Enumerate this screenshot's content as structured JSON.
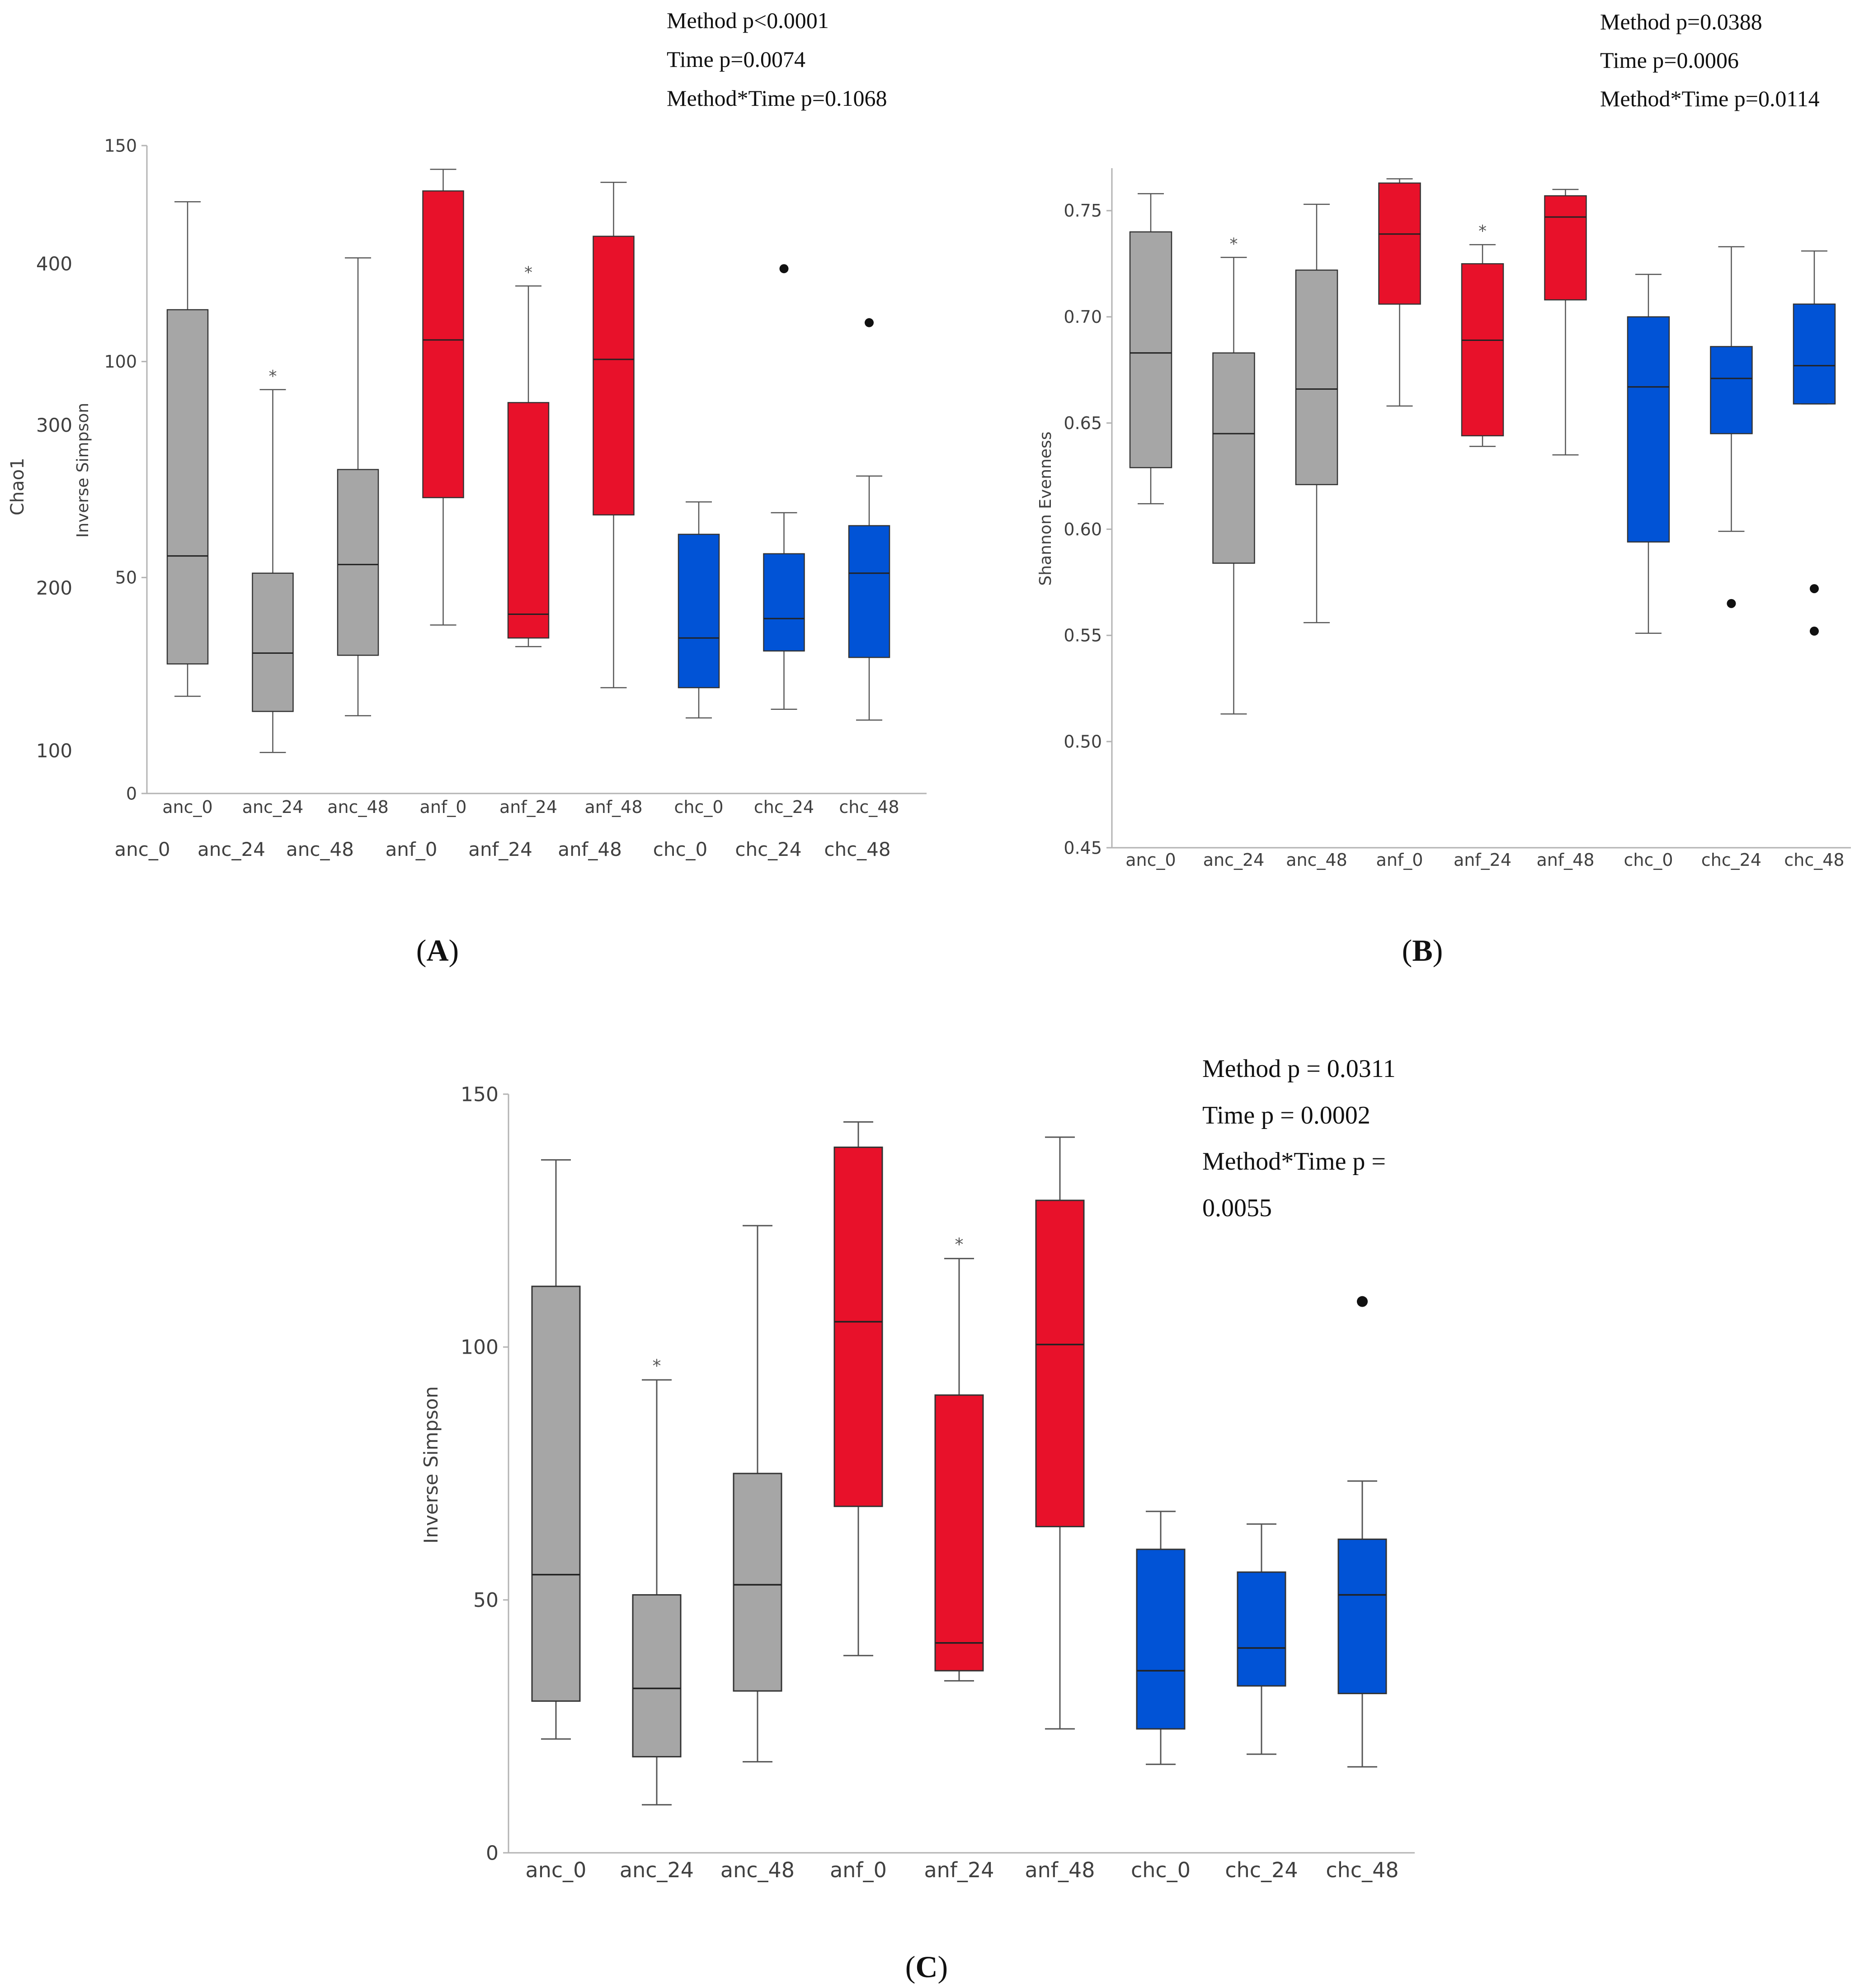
{
  "colors": {
    "grey": "#a6a6a6",
    "red": "#e8112a",
    "blue": "#0153d6",
    "axis": "#b3b3b3",
    "text": "#404040"
  },
  "panels": {
    "A": {
      "label": "(A)",
      "stats": [
        "Method p<0.0001",
        "Time p=0.0074",
        "Method*Time p=0.1068"
      ],
      "chao_label": "Chao1",
      "chao_ticks": [
        "400",
        "300",
        "200",
        "100"
      ],
      "chao_categories": [
        "anc_0",
        "anc_24",
        "anc_48",
        "anf_0",
        "anf_24",
        "anf_48",
        "chc_0",
        "chc_24",
        "chc_48"
      ]
    },
    "B": {
      "label": "(B)",
      "stats": [
        "Method p=0.0388",
        "Time p=0.0006",
        "Method*Time p=0.0114"
      ]
    },
    "C": {
      "label": "(C)",
      "stats": [
        "Method p = 0.0311",
        "Time p = 0.0002",
        "Method*Time p =",
        "0.0055"
      ]
    }
  },
  "chart_data": [
    {
      "type": "box",
      "id": "A",
      "title": "",
      "xlabel": "",
      "ylabel": "Inverse Simpson",
      "ylim": [
        0,
        150
      ],
      "yticks": [
        0,
        50,
        100,
        150
      ],
      "categories": [
        "anc_0",
        "anc_24",
        "anc_48",
        "anf_0",
        "anf_24",
        "anf_48",
        "chc_0",
        "chc_24",
        "chc_48"
      ],
      "groups": [
        "grey",
        "grey",
        "grey",
        "red",
        "red",
        "red",
        "blue",
        "blue",
        "blue"
      ],
      "boxes": [
        {
          "min": 22.5,
          "q1": 30,
          "median": 55,
          "q3": 112,
          "max": 137
        },
        {
          "min": 9.5,
          "q1": 19,
          "median": 32.5,
          "q3": 51,
          "max": 93.5,
          "marker": "*"
        },
        {
          "min": 18,
          "q1": 32,
          "median": 53,
          "q3": 75,
          "max": 124
        },
        {
          "min": 39,
          "q1": 68.5,
          "median": 105,
          "q3": 139.5,
          "max": 144.5
        },
        {
          "min": 34,
          "q1": 36,
          "median": 41.5,
          "q3": 90.5,
          "max": 117.5,
          "marker": "*"
        },
        {
          "min": 24.5,
          "q1": 64.5,
          "median": 100.5,
          "q3": 129,
          "max": 141.5
        },
        {
          "min": 17.5,
          "q1": 24.5,
          "median": 36,
          "q3": 60,
          "max": 67.5
        },
        {
          "min": 19.5,
          "q1": 33,
          "median": 40.5,
          "q3": 55.5,
          "max": 65,
          "outliers": [
            121.5
          ]
        },
        {
          "min": 17,
          "q1": 31.5,
          "median": 51,
          "q3": 62,
          "max": 73.5,
          "outliers": [
            109
          ]
        }
      ]
    },
    {
      "type": "box",
      "id": "B",
      "title": "",
      "xlabel": "",
      "ylabel": "Shannon Evenness",
      "ylim": [
        0.45,
        0.77
      ],
      "yticks": [
        0.45,
        0.5,
        0.55,
        0.6,
        0.65,
        0.7,
        0.75
      ],
      "ytick_labels": [
        "0.45",
        "0.50",
        "0.55",
        "0.60",
        "0.65",
        "0.70",
        "0.75"
      ],
      "categories": [
        "anc_0",
        "anc_24",
        "anc_48",
        "anf_0",
        "anf_24",
        "anf_48",
        "chc_0",
        "chc_24",
        "chc_48"
      ],
      "groups": [
        "grey",
        "grey",
        "grey",
        "red",
        "red",
        "red",
        "blue",
        "blue",
        "blue"
      ],
      "boxes": [
        {
          "min": 0.612,
          "q1": 0.629,
          "median": 0.683,
          "q3": 0.74,
          "max": 0.758
        },
        {
          "min": 0.513,
          "q1": 0.584,
          "median": 0.645,
          "q3": 0.683,
          "max": 0.728,
          "marker": "*"
        },
        {
          "min": 0.556,
          "q1": 0.621,
          "median": 0.666,
          "q3": 0.722,
          "max": 0.753
        },
        {
          "min": 0.658,
          "q1": 0.706,
          "median": 0.739,
          "q3": 0.763,
          "max": 0.765
        },
        {
          "min": 0.639,
          "q1": 0.644,
          "median": 0.689,
          "q3": 0.725,
          "max": 0.734,
          "marker": "*"
        },
        {
          "min": 0.635,
          "q1": 0.708,
          "median": 0.747,
          "q3": 0.757,
          "max": 0.76
        },
        {
          "min": 0.551,
          "q1": 0.594,
          "median": 0.667,
          "q3": 0.7,
          "max": 0.72
        },
        {
          "min": 0.599,
          "q1": 0.645,
          "median": 0.671,
          "q3": 0.686,
          "max": 0.733,
          "outliers": [
            0.565
          ]
        },
        {
          "min": 0.659,
          "q1": 0.659,
          "median": 0.677,
          "q3": 0.706,
          "max": 0.731,
          "outliers": [
            0.572,
            0.552
          ]
        }
      ]
    },
    {
      "type": "box",
      "id": "C",
      "title": "",
      "xlabel": "",
      "ylabel": "Inverse Simpson",
      "ylim": [
        0,
        150
      ],
      "yticks": [
        0,
        50,
        100,
        150
      ],
      "categories": [
        "anc_0",
        "anc_24",
        "anc_48",
        "anf_0",
        "anf_24",
        "anf_48",
        "chc_0",
        "chc_24",
        "chc_48"
      ],
      "groups": [
        "grey",
        "grey",
        "grey",
        "red",
        "red",
        "red",
        "blue",
        "blue",
        "blue"
      ],
      "boxes": [
        {
          "min": 22.5,
          "q1": 30,
          "median": 55,
          "q3": 112,
          "max": 137
        },
        {
          "min": 9.5,
          "q1": 19,
          "median": 32.5,
          "q3": 51,
          "max": 93.5,
          "marker": "*"
        },
        {
          "min": 18,
          "q1": 32,
          "median": 53,
          "q3": 75,
          "max": 124
        },
        {
          "min": 39,
          "q1": 68.5,
          "median": 105,
          "q3": 139.5,
          "max": 144.5
        },
        {
          "min": 34,
          "q1": 36,
          "median": 41.5,
          "q3": 90.5,
          "max": 117.5,
          "marker": "*"
        },
        {
          "min": 24.5,
          "q1": 64.5,
          "median": 100.5,
          "q3": 129,
          "max": 141.5
        },
        {
          "min": 17.5,
          "q1": 24.5,
          "median": 36,
          "q3": 60,
          "max": 67.5
        },
        {
          "min": 19.5,
          "q1": 33,
          "median": 40.5,
          "q3": 55.5,
          "max": 65
        },
        {
          "min": 17,
          "q1": 31.5,
          "median": 51,
          "q3": 62,
          "max": 73.5,
          "outliers": [
            109
          ]
        }
      ]
    }
  ]
}
